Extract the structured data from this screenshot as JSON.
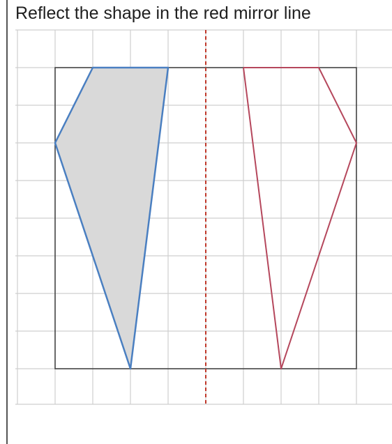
{
  "title": "Reflect the shape in the red mirror line",
  "colors": {
    "paper": "#ffffff",
    "grid": "#cfcfcf",
    "frame": "#3a3a3a",
    "mirror_line": "#c0392b",
    "original_stroke": "#4a7fc1",
    "original_fill": "#d9d9d9",
    "reflection_stroke": "#b5475c"
  },
  "grid": {
    "columns": 10,
    "rows": 9
  },
  "mirror_line": {
    "x": 4
  },
  "original_shape": {
    "points": [
      [
        1,
        8
      ],
      [
        3,
        8
      ],
      [
        2,
        0
      ],
      [
        0,
        6
      ]
    ]
  },
  "reflected_shape": {
    "points": [
      [
        5,
        8
      ],
      [
        7,
        8
      ],
      [
        8,
        6
      ],
      [
        6,
        0
      ]
    ]
  }
}
